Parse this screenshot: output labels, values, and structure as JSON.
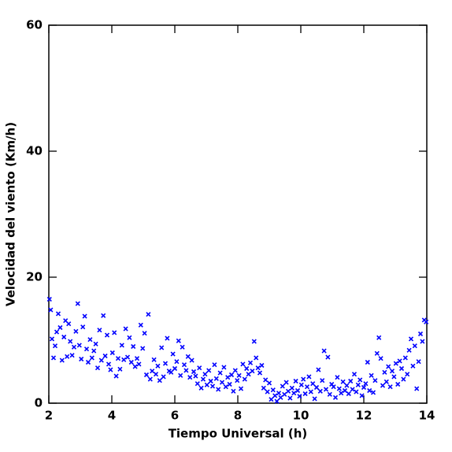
{
  "chart_data": {
    "type": "scatter",
    "x_label": "Tiempo Universal (h)",
    "y_label": "Velocidad del viento (Km/h)",
    "color": "#0000ff",
    "xlim": [
      2,
      14
    ],
    "ylim": [
      0,
      60
    ],
    "xticks": [
      2,
      4,
      6,
      8,
      10,
      12,
      14
    ],
    "yticks": [
      0,
      20,
      40,
      60
    ],
    "x": [
      2.02,
      2.06,
      2.1,
      2.15,
      2.2,
      2.25,
      2.3,
      2.36,
      2.42,
      2.48,
      2.53,
      2.58,
      2.63,
      2.68,
      2.74,
      2.8,
      2.86,
      2.92,
      2.97,
      3.03,
      3.08,
      3.14,
      3.2,
      3.25,
      3.31,
      3.37,
      3.43,
      3.49,
      3.55,
      3.61,
      3.67,
      3.73,
      3.79,
      3.85,
      3.9,
      3.96,
      4.02,
      4.08,
      4.14,
      4.2,
      4.26,
      4.32,
      4.38,
      4.44,
      4.5,
      4.56,
      4.62,
      4.68,
      4.74,
      4.8,
      4.86,
      4.92,
      4.98,
      5.04,
      5.1,
      5.16,
      5.22,
      5.28,
      5.34,
      5.4,
      5.46,
      5.52,
      5.58,
      5.64,
      5.7,
      5.76,
      5.82,
      5.88,
      5.94,
      6.0,
      6.06,
      6.12,
      6.18,
      6.24,
      6.3,
      6.36,
      6.42,
      6.48,
      6.54,
      6.6,
      6.66,
      6.72,
      6.78,
      6.84,
      6.9,
      6.96,
      7.02,
      7.08,
      7.14,
      7.2,
      7.26,
      7.32,
      7.38,
      7.44,
      7.5,
      7.56,
      7.62,
      7.68,
      7.74,
      7.8,
      7.86,
      7.92,
      7.98,
      8.04,
      8.1,
      8.16,
      8.22,
      8.28,
      8.34,
      8.4,
      8.46,
      8.52,
      8.58,
      8.64,
      8.7,
      8.76,
      8.82,
      8.88,
      8.94,
      9.0,
      9.06,
      9.12,
      9.18,
      9.24,
      9.3,
      9.36,
      9.42,
      9.48,
      9.54,
      9.6,
      9.66,
      9.72,
      9.78,
      9.84,
      9.9,
      9.96,
      10.02,
      10.08,
      10.14,
      10.2,
      10.26,
      10.32,
      10.38,
      10.44,
      10.5,
      10.56,
      10.62,
      10.68,
      10.74,
      10.8,
      10.86,
      10.92,
      10.98,
      11.04,
      11.1,
      11.16,
      11.22,
      11.28,
      11.34,
      11.4,
      11.46,
      11.52,
      11.58,
      11.64,
      11.7,
      11.76,
      11.82,
      11.88,
      11.94,
      12.0,
      12.06,
      12.12,
      12.18,
      12.24,
      12.3,
      12.36,
      12.42,
      12.48,
      12.54,
      12.6,
      12.66,
      12.72,
      12.78,
      12.84,
      12.9,
      12.96,
      13.02,
      13.08,
      13.14,
      13.2,
      13.26,
      13.32,
      13.38,
      13.44,
      13.5,
      13.56,
      13.62,
      13.68,
      13.74,
      13.8,
      13.86,
      13.92,
      13.98
    ],
    "values": [
      16.5,
      14.8,
      10.2,
      7.2,
      9.1,
      11.3,
      14.2,
      12.0,
      6.8,
      10.5,
      13.1,
      7.4,
      12.6,
      9.8,
      7.6,
      8.9,
      11.4,
      15.8,
      9.2,
      7.0,
      12.1,
      13.8,
      8.6,
      6.5,
      10.1,
      7.2,
      8.3,
      9.4,
      5.6,
      11.6,
      6.8,
      13.9,
      7.5,
      10.8,
      6.2,
      5.3,
      8.0,
      11.2,
      4.3,
      7.1,
      5.4,
      9.2,
      6.9,
      11.8,
      7.3,
      10.4,
      6.5,
      9.0,
      5.8,
      7.1,
      6.2,
      12.4,
      8.7,
      11.1,
      4.5,
      14.1,
      3.8,
      5.1,
      6.9,
      4.6,
      5.9,
      3.6,
      8.8,
      4.2,
      6.3,
      10.3,
      5.1,
      4.9,
      7.8,
      5.5,
      6.6,
      9.9,
      4.4,
      8.9,
      6.1,
      5.2,
      7.4,
      4.1,
      6.8,
      5.0,
      4.3,
      3.1,
      5.6,
      2.4,
      3.8,
      4.6,
      2.9,
      5.2,
      3.5,
      2.7,
      6.1,
      3.9,
      2.2,
      4.8,
      3.3,
      5.7,
      2.6,
      4.1,
      3.0,
      4.5,
      1.9,
      5.2,
      3.6,
      4.4,
      2.3,
      6.2,
      3.8,
      5.5,
      4.6,
      6.4,
      5.1,
      9.8,
      7.2,
      5.6,
      4.8,
      6.0,
      2.4,
      3.7,
      1.8,
      3.2,
      0.6,
      2.1,
      1.2,
      0.3,
      1.6,
      0.9,
      2.7,
      1.4,
      3.3,
      1.9,
      0.8,
      2.4,
      1.6,
      3.5,
      2.0,
      1.1,
      2.9,
      3.8,
      1.5,
      2.6,
      4.2,
      1.8,
      3.1,
      0.7,
      2.5,
      5.3,
      1.9,
      3.6,
      8.3,
      2.2,
      7.3,
      1.4,
      3.0,
      2.6,
      0.9,
      4.1,
      2.3,
      1.6,
      3.4,
      2.0,
      2.8,
      1.5,
      3.5,
      2.2,
      4.6,
      1.8,
      2.9,
      3.7,
      1.2,
      2.5,
      3.1,
      6.5,
      2.0,
      4.4,
      1.7,
      3.6,
      7.9,
      10.4,
      7.1,
      2.8,
      4.9,
      3.4,
      5.8,
      2.6,
      5.1,
      4.2,
      6.3,
      3.0,
      6.7,
      5.5,
      3.8,
      7.2,
      4.6,
      8.4,
      10.2,
      5.9,
      9.1,
      2.3,
      6.6,
      11.0,
      9.8,
      13.2,
      12.9
    ]
  }
}
